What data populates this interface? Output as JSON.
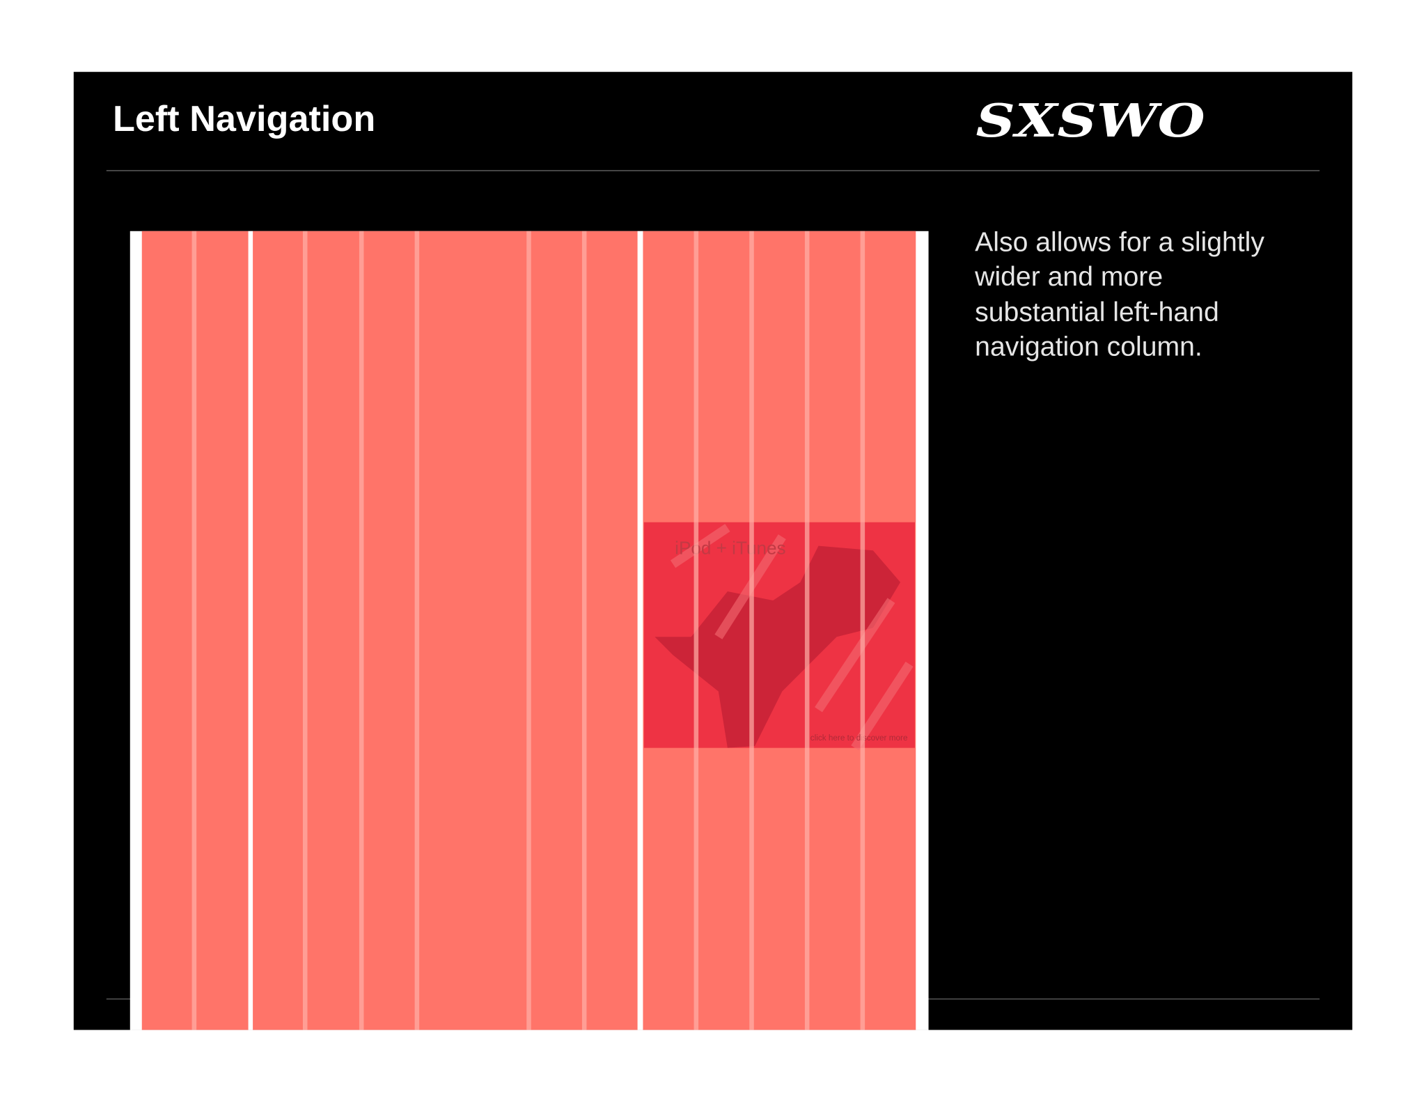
{
  "header": {
    "title": "Left Navigation",
    "logo": "SXSWO"
  },
  "description": [
    "Also allows for a slightly",
    "wider and more",
    "substantial left-hand",
    "navigation column."
  ],
  "ad": {
    "title": "iPod + iTunes",
    "caption": "click here to discover more"
  }
}
